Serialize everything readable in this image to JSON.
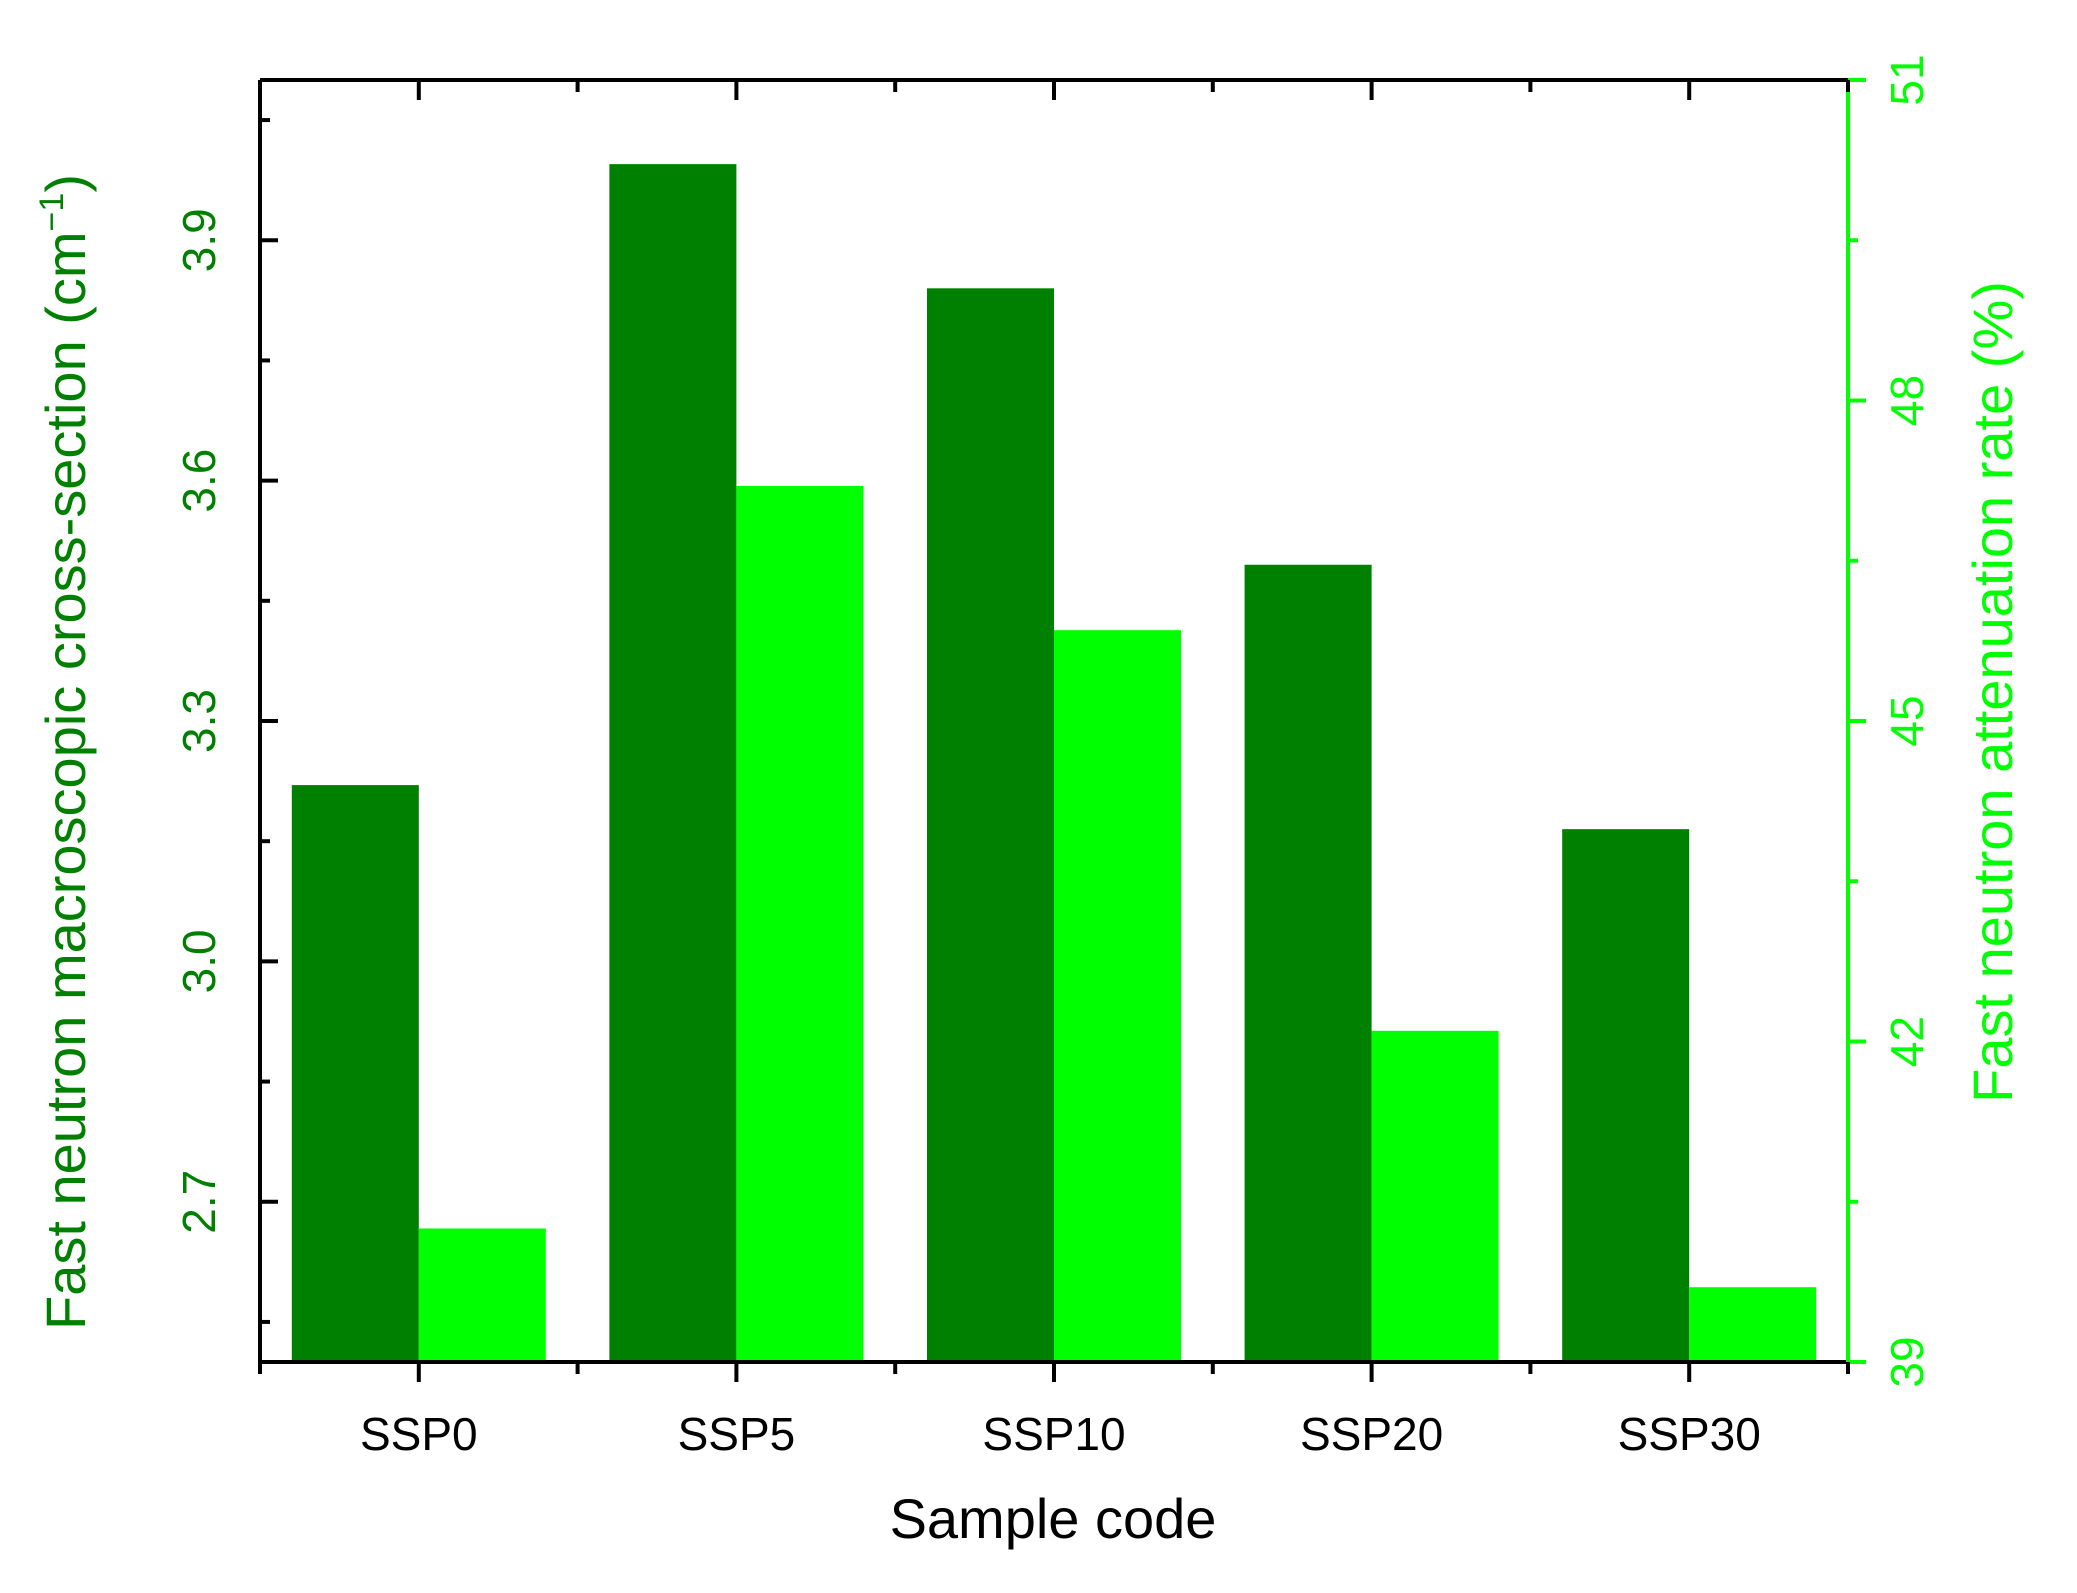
{
  "chart_data": {
    "type": "bar",
    "xlabel": "Sample code",
    "ylabel_left": "Fast neutron macroscopic cross-section (cm",
    "ylabel_left_sup": "−1",
    "ylabel_left_close": ")",
    "ylabel_right": "Fast neutron  attenuation rate (%)",
    "categories": [
      "SSP0",
      "SSP5",
      "SSP10",
      "SSP20",
      "SSP30"
    ],
    "series": [
      {
        "axis": "left",
        "color": "#008000",
        "values": [
          3.22,
          3.995,
          3.84,
          3.495,
          3.165
        ]
      },
      {
        "axis": "right",
        "color": "#00ff00",
        "values": [
          40.25,
          47.2,
          45.85,
          42.1,
          39.7
        ]
      }
    ],
    "ylim_left": [
      2.5,
      4.1
    ],
    "yticks_left": [
      "2.7",
      "3.0",
      "3.3",
      "3.6",
      "3.9"
    ],
    "ylim_right": [
      39,
      51
    ],
    "yticks_right": [
      "39",
      "42",
      "45",
      "48",
      "51"
    ],
    "colors": {
      "left_axis": "#008000",
      "right_axis": "#00ff00",
      "frame": "#000000"
    },
    "grid": false,
    "legend": "none"
  }
}
